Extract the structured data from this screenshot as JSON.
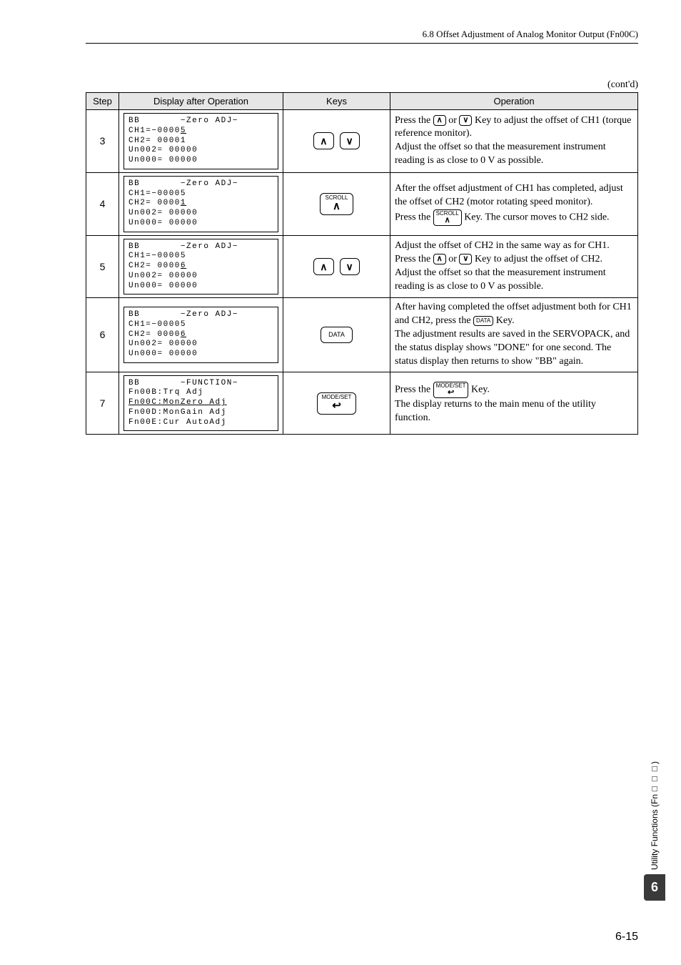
{
  "header": "6.8  Offset Adjustment of Analog Monitor Output (Fn00C)",
  "contd": "(cont'd)",
  "columns": {
    "step": "Step",
    "disp": "Display after Operation",
    "keys": "Keys",
    "op": "Operation"
  },
  "rows": [
    {
      "step": "3",
      "lcd": {
        "l1a": "BB",
        "l1b": "−Zero ADJ−",
        "l2": "CH1=−0000",
        "l2u": "5",
        "l3": "CH2= 00001",
        "l4": "Un002= 00000",
        "l5": "Un000= 00000"
      },
      "keys": [
        "up",
        "down"
      ],
      "op_pre": "Press the ",
      "op_mid": " or ",
      "op_tail": " Key to adjust the offset of CH1 (torque reference monitor).",
      "op_rest": "Adjust the offset so that the measurement instrument reading is as close to 0 V as possible."
    },
    {
      "step": "4",
      "lcd": {
        "l1a": "BB",
        "l1b": "−Zero ADJ−",
        "l2": "CH1=−00005",
        "l3": "CH2= 0000",
        "l3u": "1",
        "l4": "Un002= 00000",
        "l5": "Un000= 00000"
      },
      "keys": [
        "scroll"
      ],
      "op_a": "After the offset adjustment of CH1 has completed, adjust the offset of CH2 (motor rotating speed monitor).",
      "op_b_pre": "Press the ",
      "op_b_post": " Key. The cursor moves to CH2 side."
    },
    {
      "step": "5",
      "lcd": {
        "l1a": "BB",
        "l1b": "−Zero ADJ−",
        "l2": "CH1=−00005",
        "l3": "CH2= 0000",
        "l3u": "6",
        "l4": "Un002= 00000",
        "l5": "Un000= 00000"
      },
      "keys": [
        "up",
        "down"
      ],
      "op_a": "Adjust the offset of CH2 in the same way as for CH1.",
      "op_b_pre": "Press the ",
      "op_b_mid": " or ",
      "op_b_post": " Key to adjust the offset of CH2.",
      "op_c": "Adjust the offset so that the measurement instrument reading is as close to 0 V as possible."
    },
    {
      "step": "6",
      "lcd": {
        "l1a": "BB",
        "l1b": "−Zero ADJ−",
        "l2": "CH1=−00005",
        "l3": "CH2= 0000",
        "l3u": "6",
        "l4": "Un002= 00000",
        "l5": "Un000= 00000"
      },
      "keys": [
        "data"
      ],
      "op_a_pre": "After having completed the offset adjustment both for CH1 and CH2, press the ",
      "op_a_post": " Key.",
      "op_b": "The adjustment results are saved in the SERVOPACK, and the status display shows \"DONE\" for one second. The status display then returns to show \"BB\" again."
    },
    {
      "step": "7",
      "lcd": {
        "l1a": "BB",
        "l1b": "−FUNCTION−",
        "l2": "Fn00B:Trq Adj",
        "l3u_full": "Fn00C:MonZero Adj",
        "l4": "Fn00D:MonGain Adj",
        "l5": "Fn00E:Cur AutoAdj"
      },
      "keys": [
        "modeset"
      ],
      "op_a_pre": "Press the ",
      "op_a_post": " Key.",
      "op_b": "The display returns to the main menu of the utility function."
    }
  ],
  "keylabels": {
    "up": "∧",
    "down": "∨",
    "scroll_top": "SCROLL",
    "scroll_bot": "∧",
    "data": "DATA",
    "modeset_top": "MODE/SET",
    "modeset_bot": "↩",
    "data_inline": "DATA"
  },
  "side": {
    "text": "Utility Functions (Fn□□□)",
    "num": "6"
  },
  "pagenum": "6-15"
}
